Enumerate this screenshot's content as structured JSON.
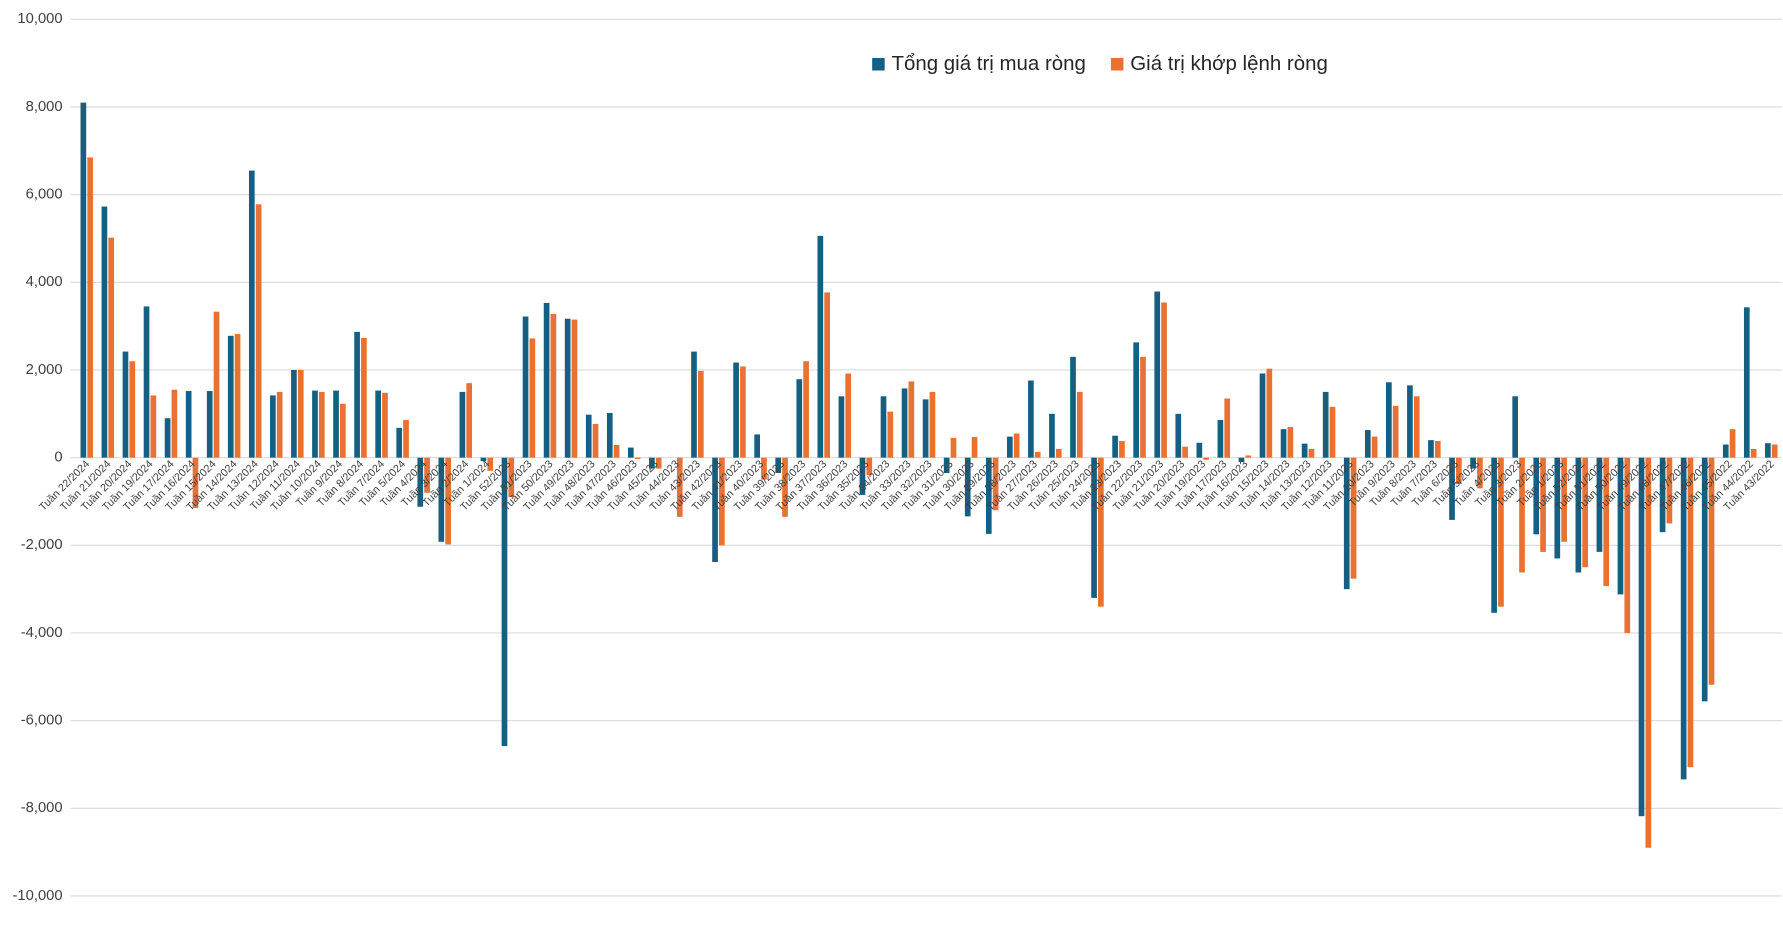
{
  "chart_data": {
    "type": "bar",
    "categories": [
      "Tuần 22/2024",
      "Tuần 21/2024",
      "Tuần 20/2024",
      "Tuần 19/2024",
      "Tuần 17/2024",
      "Tuần 16/2024",
      "Tuần 15/2024",
      "Tuần 14/2024",
      "Tuần 13/2024",
      "Tuần 12/2024",
      "Tuần 11/2024",
      "Tuần 10/2024",
      "Tuần 9/2024",
      "Tuần 8/2024",
      "Tuần 7/2024",
      "Tuần 5/2024",
      "Tuần 4/2024",
      "Tuần 3/2024",
      "Tuần 2/2024",
      "Tuần 1/2024",
      "Tuần 52/2023",
      "Tuần 51/2023",
      "Tuần 50/2023",
      "Tuần 49/2023",
      "Tuần 48/2023",
      "Tuần 47/2023",
      "Tuần 46/2023",
      "Tuần 45/2023",
      "Tuần 44/2023",
      "Tuần 43/2023",
      "Tuần 42/2023",
      "Tuần 41/2023",
      "Tuần 40/2023",
      "Tuần 39/2023",
      "Tuần 38/2023",
      "Tuần 37/2023",
      "Tuần 36/2023",
      "Tuần 35/2023",
      "Tuần 34/2023",
      "Tuần 33/2023",
      "Tuần 32/2023",
      "Tuần 31/2023",
      "Tuần 30/2023",
      "Tuần 29/2023",
      "Tuần 28/2023",
      "Tuần 27/2023",
      "Tuần 26/2023",
      "Tuần 25/2023",
      "Tuần 24/2023",
      "Tuần 23/2023",
      "Tuần 22/2023",
      "Tuần 21/2023",
      "Tuần 20/2023",
      "Tuần 19/2023",
      "Tuần 17/2023",
      "Tuần 16/2023",
      "Tuần 15/2023",
      "Tuần 14/2023",
      "Tuần 13/2023",
      "Tuần 12/2023",
      "Tuần 11/2023",
      "Tuần 10/2023",
      "Tuần 9/2023",
      "Tuần 8/2023",
      "Tuần 7/2023",
      "Tuần 6/2023",
      "Tuần 5/2023",
      "Tuần 4/2023",
      "Tuần 3/2023",
      "Tuần 2/2023",
      "Tuần 1/2023",
      "Tuần 52/2022",
      "Tuần 51/2022",
      "Tuần 50/2022",
      "Tuần 49/2022",
      "Tuần 48/2022",
      "Tuần 47/2022",
      "Tuần 46/2022",
      "Tuần 45/2022",
      "Tuần 44/2022",
      "Tuần 43/2022"
    ],
    "series": [
      {
        "name": "Tổng giá trị mua ròng",
        "color": "#156082",
        "values": [
          8100,
          5730,
          2420,
          3450,
          900,
          1520,
          1520,
          2780,
          6550,
          1420,
          2000,
          1530,
          1530,
          2870,
          1530,
          680,
          -1120,
          -1920,
          1500,
          -80,
          -6580,
          3220,
          3530,
          3170,
          980,
          1020,
          230,
          -250,
          0,
          2420,
          -2380,
          2170,
          530,
          -350,
          1790,
          5060,
          1400,
          -850,
          1400,
          1580,
          1330,
          -350,
          -1340,
          -1740,
          480,
          1760,
          1000,
          2300,
          -3200,
          500,
          2630,
          3790,
          1000,
          340,
          860,
          -100,
          1920,
          650,
          320,
          1500,
          -3000,
          630,
          1720,
          1650,
          400,
          -1420,
          -250,
          -3540,
          1400,
          -1750,
          -2300,
          -2620,
          -2150,
          -3120,
          -8180,
          -1700,
          -7340,
          -5560,
          300,
          3430,
          330
        ]
      },
      {
        "name": "Giá trị khớp lệnh ròng",
        "color": "#e97132",
        "values": [
          6850,
          5020,
          2200,
          1420,
          1550,
          -1150,
          3330,
          2820,
          5780,
          1500,
          2000,
          1500,
          1230,
          2730,
          1480,
          860,
          -800,
          -1980,
          1700,
          -300,
          -900,
          2720,
          3280,
          3150,
          770,
          290,
          -30,
          -250,
          -1350,
          1980,
          -2000,
          2080,
          -500,
          -1350,
          2200,
          3770,
          1920,
          -400,
          1050,
          1740,
          1500,
          450,
          470,
          -1200,
          550,
          130,
          200,
          1500,
          -3400,
          380,
          2300,
          3540,
          250,
          -50,
          1350,
          50,
          2030,
          700,
          200,
          1160,
          -2760,
          480,
          1180,
          1400,
          380,
          -600,
          -700,
          -3400,
          -2620,
          -2150,
          -1920,
          -2500,
          -2930,
          -4000,
          -8900,
          -1500,
          -7060,
          -5180,
          650,
          200,
          300
        ]
      }
    ],
    "ylim": [
      -10000,
      10000
    ],
    "yticks": [
      {
        "value": -10000,
        "label": "-10,000"
      },
      {
        "value": -8000,
        "label": "-8,000"
      },
      {
        "value": -6000,
        "label": "-6,000"
      },
      {
        "value": -4000,
        "label": "-4,000"
      },
      {
        "value": -2000,
        "label": "-2,000"
      },
      0,
      {
        "value": 2000,
        "label": "2,000"
      },
      {
        "value": 4000,
        "label": "4,000"
      },
      {
        "value": 6000,
        "label": "6,000"
      },
      {
        "value": 8000,
        "label": "8,000"
      },
      {
        "value": 10000,
        "label": "10,000"
      }
    ],
    "grid": true,
    "legend": "top"
  }
}
